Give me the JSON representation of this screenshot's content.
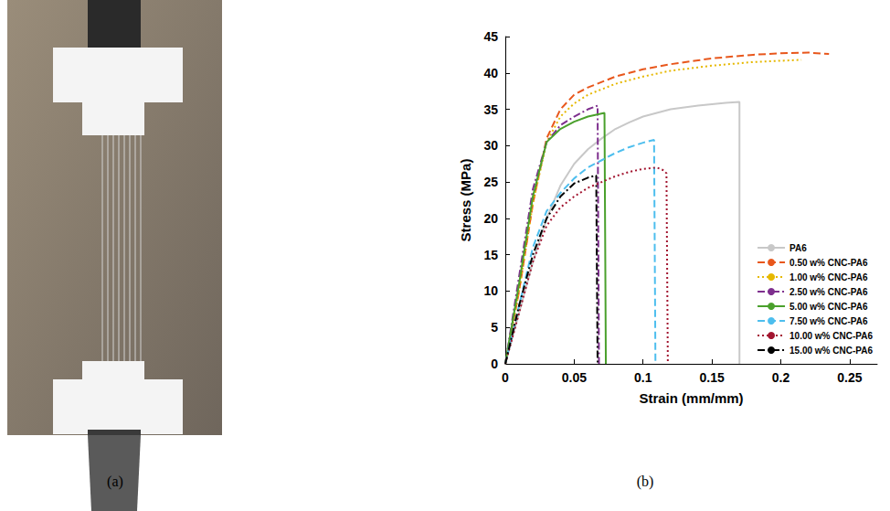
{
  "chart_data": {
    "type": "line",
    "xlabel": "Strain (mm/mm)",
    "ylabel": "Stress (MPa)",
    "xlim": [
      0,
      0.27
    ],
    "ylim": [
      0,
      45
    ],
    "xticks": [
      0,
      0.05,
      0.1,
      0.15,
      0.2,
      0.25
    ],
    "yticks": [
      0,
      5,
      10,
      15,
      20,
      25,
      30,
      35,
      40,
      45
    ],
    "grid": false,
    "legend": "lower right",
    "series": [
      {
        "name": "PA6",
        "color": "#c8c8c8",
        "line_style": "solid",
        "x": [
          0,
          0.01,
          0.02,
          0.03,
          0.04,
          0.05,
          0.06,
          0.07,
          0.08,
          0.09,
          0.1,
          0.12,
          0.14,
          0.16,
          0.17,
          0.17
        ],
        "values": [
          0,
          7,
          14,
          20,
          24.5,
          27.5,
          29.5,
          31,
          32.3,
          33.2,
          34,
          35,
          35.5,
          35.9,
          36,
          0
        ]
      },
      {
        "name": "0.50 w% CNC-PA6",
        "color": "#e8571c",
        "line_style": "dashed",
        "x": [
          0,
          0.01,
          0.02,
          0.03,
          0.04,
          0.05,
          0.06,
          0.08,
          0.1,
          0.12,
          0.15,
          0.18,
          0.2,
          0.22,
          0.235
        ],
        "values": [
          0,
          10,
          22,
          31,
          35,
          37,
          38,
          39.5,
          40.5,
          41.2,
          42,
          42.5,
          42.7,
          42.8,
          42.6
        ]
      },
      {
        "name": "1.00 w% CNC-PA6",
        "color": "#e6b800",
        "line_style": "dotted",
        "x": [
          0,
          0.01,
          0.02,
          0.03,
          0.04,
          0.05,
          0.06,
          0.08,
          0.1,
          0.12,
          0.15,
          0.18,
          0.215
        ],
        "values": [
          0,
          10,
          22,
          30.5,
          34,
          35.8,
          37,
          38.5,
          39.5,
          40.3,
          41,
          41.5,
          41.8
        ]
      },
      {
        "name": "2.50 w% CNC-PA6",
        "color": "#7e2f8e",
        "line_style": "dashdot",
        "x": [
          0,
          0.01,
          0.02,
          0.03,
          0.04,
          0.05,
          0.06,
          0.067,
          0.068
        ],
        "values": [
          0,
          12,
          24,
          30.5,
          32.8,
          34,
          35,
          35.5,
          0
        ]
      },
      {
        "name": "5.00 w% CNC-PA6",
        "color": "#4aa02c",
        "line_style": "solid",
        "x": [
          0,
          0.01,
          0.02,
          0.03,
          0.04,
          0.05,
          0.06,
          0.072,
          0.073
        ],
        "values": [
          0,
          11,
          23,
          30.5,
          32.3,
          33.3,
          34,
          34.5,
          0
        ]
      },
      {
        "name": "7.50 w% CNC-PA6",
        "color": "#4dbeee",
        "line_style": "dashed",
        "x": [
          0,
          0.01,
          0.02,
          0.03,
          0.04,
          0.05,
          0.06,
          0.07,
          0.08,
          0.09,
          0.1,
          0.108,
          0.109
        ],
        "values": [
          0,
          8,
          16,
          21,
          23.5,
          25.5,
          27,
          28,
          29,
          29.8,
          30.4,
          30.8,
          0
        ]
      },
      {
        "name": "10.00 w% CNC-PA6",
        "color": "#a2142f",
        "line_style": "dotted",
        "x": [
          0,
          0.01,
          0.02,
          0.03,
          0.04,
          0.05,
          0.06,
          0.07,
          0.08,
          0.09,
          0.1,
          0.11,
          0.115,
          0.117,
          0.118
        ],
        "values": [
          0,
          7,
          14,
          19,
          21.5,
          23,
          24.2,
          25,
          25.8,
          26.4,
          26.8,
          27,
          26.6,
          26.2,
          0
        ]
      },
      {
        "name": "15.00 w% CNC-PA6",
        "color": "#000000",
        "line_style": "dashdot",
        "x": [
          0,
          0.01,
          0.02,
          0.03,
          0.04,
          0.05,
          0.06,
          0.066,
          0.067
        ],
        "values": [
          0,
          8,
          15,
          20,
          23,
          24.8,
          25.6,
          25.9,
          0
        ]
      }
    ]
  },
  "panel_labels": [
    "(a)",
    "(b)"
  ]
}
